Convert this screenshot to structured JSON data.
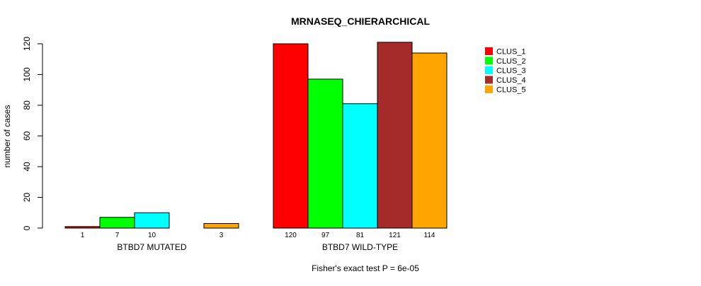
{
  "chart_data": {
    "type": "bar",
    "title": "MRNASEQ_CHIERARCHICAL",
    "ylabel": "number of cases",
    "ylim": [
      0,
      120
    ],
    "yticks": [
      0,
      20,
      40,
      60,
      80,
      100,
      120
    ],
    "footnote": "Fisher's exact test P = 6e-05",
    "groups": [
      {
        "label": "BTBD7 MUTATED",
        "values": [
          1,
          7,
          10,
          0,
          3
        ],
        "count_labels": [
          "1",
          "7",
          "10",
          "",
          "3"
        ]
      },
      {
        "label": "BTBD7 WILD-TYPE",
        "values": [
          120,
          97,
          81,
          121,
          114
        ],
        "count_labels": [
          "120",
          "97",
          "81",
          "121",
          "114"
        ]
      }
    ],
    "series": [
      {
        "name": "CLUS_1",
        "color": "#ff0000"
      },
      {
        "name": "CLUS_2",
        "color": "#00ff00"
      },
      {
        "name": "CLUS_3",
        "color": "#00ffff"
      },
      {
        "name": "CLUS_4",
        "color": "#a52a2a"
      },
      {
        "name": "CLUS_5",
        "color": "#ffa500"
      }
    ],
    "legend_position": "top-right"
  }
}
